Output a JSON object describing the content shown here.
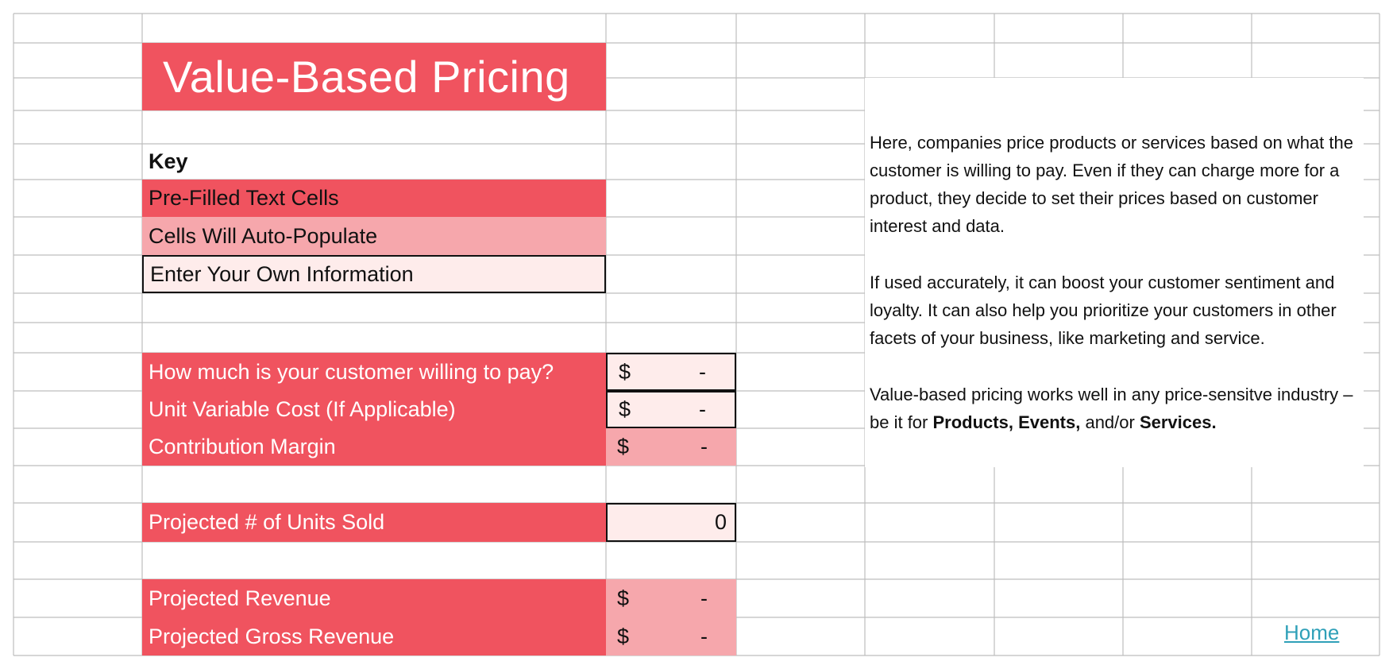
{
  "title": "Value-Based Pricing",
  "key": {
    "heading": "Key",
    "prefilled": "Pre-Filled Text Cells",
    "auto": "Cells Will Auto-Populate",
    "enter": "Enter Your Own Information"
  },
  "rows": {
    "willing_to_pay": {
      "label": "How much is your customer willing to pay?",
      "currency": "$",
      "value": "-"
    },
    "unit_cost": {
      "label": "Unit Variable Cost (If Applicable)",
      "currency": "$",
      "value": "-"
    },
    "margin": {
      "label": "Contribution Margin",
      "currency": "$",
      "value": "-"
    },
    "units_sold": {
      "label": "Projected # of Units Sold",
      "value": "0"
    },
    "revenue": {
      "label": "Projected Revenue",
      "currency": "$",
      "value": "-"
    },
    "gross_revenue": {
      "label": "Projected Gross Revenue",
      "currency": "$",
      "value": "-"
    }
  },
  "description": {
    "p1": "Here, companies price products or services based on what the customer is willing to pay. Even if they can charge more for a product, they decide to set their prices based on customer interest and data.",
    "p2": "If used accurately, it can boost your customer sentiment and loyalty. It can also help you prioritize your customers in other facets of your business, like marketing and service.",
    "p3_start": "Value-based pricing works well in any price-sensitve industry – be it for ",
    "p3_products": "Products,",
    "p3_events": "Events,",
    "p3_and": " and/or ",
    "p3_services": "Services."
  },
  "home_link": "Home",
  "colors": {
    "prefilled": "#f0535f",
    "auto": "#f6a7ac",
    "enter": "#feeceb",
    "grid": "#bdbdbd",
    "link": "#2fa0b8"
  }
}
